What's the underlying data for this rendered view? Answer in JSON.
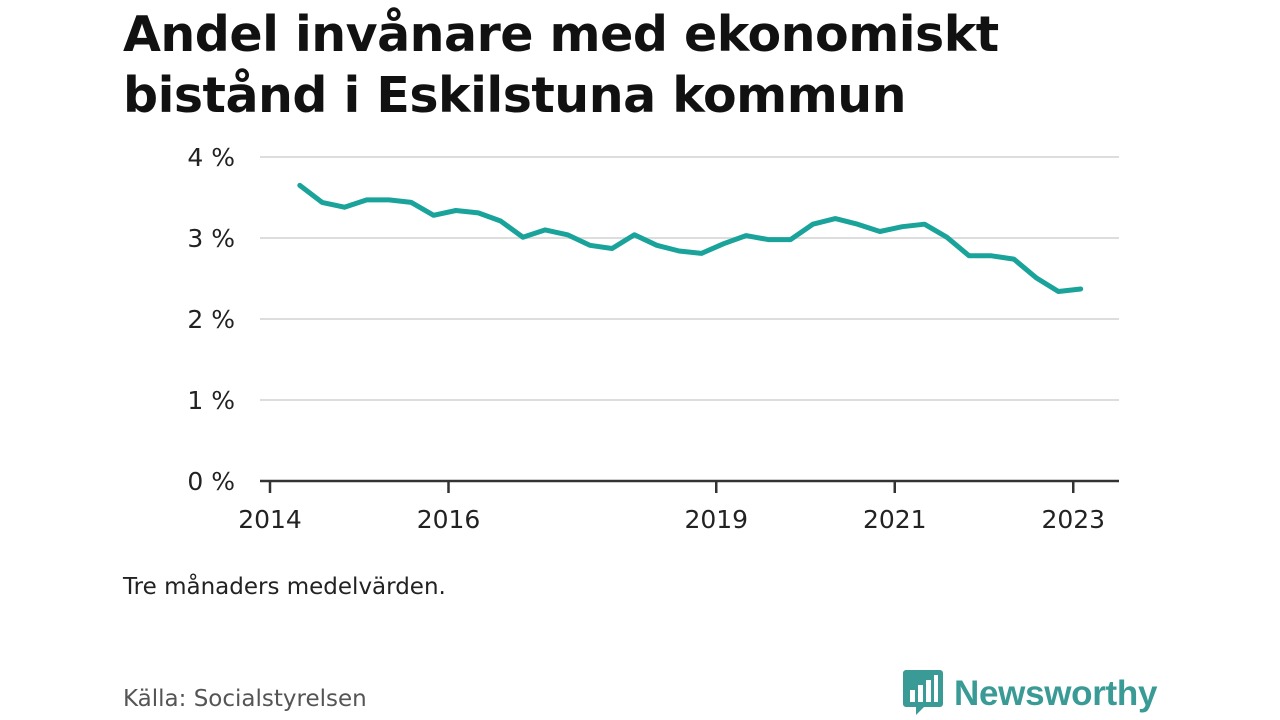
{
  "title": "Andel invånare med ekonomiskt bistånd i Eskilstuna kommun",
  "note": "Tre månaders medelvärden.",
  "source": "Källa: Socialstyrelsen",
  "brand": {
    "name": "Newsworthy",
    "icon": "bar-chart-speech-bubble-icon",
    "color": "#3a9a96"
  },
  "colors": {
    "line": "#1aa39a",
    "grid": "#dddddd",
    "axis": "#333333"
  },
  "chart_data": {
    "type": "line",
    "title": "Andel invånare med ekonomiskt bistånd i Eskilstuna kommun",
    "xlabel": "",
    "ylabel": "",
    "y_unit": "%",
    "ylim": [
      0,
      4
    ],
    "y_ticks": [
      0,
      1,
      2,
      3,
      4
    ],
    "y_tick_labels": [
      "0 %",
      "1 %",
      "2 %",
      "3 %",
      "4 %"
    ],
    "x_ticks": [
      "2014",
      "2016",
      "2019",
      "2021",
      "2023"
    ],
    "grid": true,
    "series": [
      {
        "values": [
          {
            "x": "2014-05",
            "y": 3.65
          },
          {
            "x": "2014-08",
            "y": 3.44
          },
          {
            "x": "2014-11",
            "y": 3.38
          },
          {
            "x": "2015-02",
            "y": 3.47
          },
          {
            "x": "2015-05",
            "y": 3.47
          },
          {
            "x": "2015-08",
            "y": 3.44
          },
          {
            "x": "2015-11",
            "y": 3.28
          },
          {
            "x": "2016-02",
            "y": 3.34
          },
          {
            "x": "2016-05",
            "y": 3.31
          },
          {
            "x": "2016-08",
            "y": 3.21
          },
          {
            "x": "2016-11",
            "y": 3.01
          },
          {
            "x": "2017-02",
            "y": 3.1
          },
          {
            "x": "2017-05",
            "y": 3.04
          },
          {
            "x": "2017-08",
            "y": 2.91
          },
          {
            "x": "2017-11",
            "y": 2.87
          },
          {
            "x": "2018-02",
            "y": 3.04
          },
          {
            "x": "2018-05",
            "y": 2.91
          },
          {
            "x": "2018-08",
            "y": 2.84
          },
          {
            "x": "2018-11",
            "y": 2.81
          },
          {
            "x": "2019-02",
            "y": 2.93
          },
          {
            "x": "2019-05",
            "y": 3.03
          },
          {
            "x": "2019-08",
            "y": 2.98
          },
          {
            "x": "2019-11",
            "y": 2.98
          },
          {
            "x": "2020-02",
            "y": 3.17
          },
          {
            "x": "2020-05",
            "y": 3.24
          },
          {
            "x": "2020-08",
            "y": 3.17
          },
          {
            "x": "2020-11",
            "y": 3.08
          },
          {
            "x": "2021-02",
            "y": 3.14
          },
          {
            "x": "2021-05",
            "y": 3.17
          },
          {
            "x": "2021-08",
            "y": 3.01
          },
          {
            "x": "2021-11",
            "y": 2.78
          },
          {
            "x": "2022-02",
            "y": 2.78
          },
          {
            "x": "2022-05",
            "y": 2.74
          },
          {
            "x": "2022-08",
            "y": 2.51
          },
          {
            "x": "2022-11",
            "y": 2.34
          },
          {
            "x": "2023-02",
            "y": 2.37
          }
        ]
      }
    ]
  }
}
